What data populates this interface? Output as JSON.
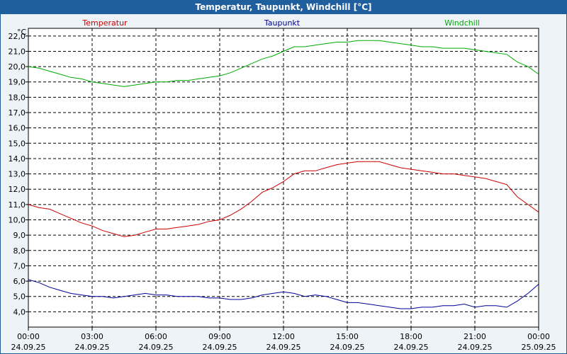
{
  "window": {
    "title": "Temperatur, Taupunkt, Windchill [°C]"
  },
  "chart_data": {
    "type": "line",
    "unit": "°C",
    "ylim": [
      3.0,
      22.5
    ],
    "yticks": [
      4.0,
      5.0,
      6.0,
      7.0,
      8.0,
      9.0,
      10.0,
      11.0,
      12.0,
      13.0,
      14.0,
      15.0,
      16.0,
      17.0,
      18.0,
      19.0,
      20.0,
      21.0,
      22.0
    ],
    "ytick_labels": [
      "4,0",
      "5,0",
      "6,0",
      "7,0",
      "8,0",
      "9,0",
      "10,0",
      "11,0",
      "12,0",
      "13,0",
      "14,0",
      "15,0",
      "16,0",
      "17,0",
      "18,0",
      "19,0",
      "20,0",
      "21,0",
      "22,0"
    ],
    "xlim_hours": [
      0,
      24
    ],
    "xticks": [
      {
        "h": 0,
        "time": "00:00",
        "date": "24.09.25"
      },
      {
        "h": 3,
        "time": "03:00",
        "date": "24.09.25"
      },
      {
        "h": 6,
        "time": "06:00",
        "date": "24.09.25"
      },
      {
        "h": 9,
        "time": "09:00",
        "date": "24.09.25"
      },
      {
        "h": 12,
        "time": "12:00",
        "date": "24.09.25"
      },
      {
        "h": 15,
        "time": "15:00",
        "date": "24.09.25"
      },
      {
        "h": 18,
        "time": "18:00",
        "date": "24.09.25"
      },
      {
        "h": 21,
        "time": "21:00",
        "date": "24.09.25"
      },
      {
        "h": 24,
        "time": "00:00",
        "date": "25.09.25"
      }
    ],
    "grid": true,
    "series": [
      {
        "name": "Temperatur",
        "color": "#cc0000",
        "x": [
          0,
          0.5,
          1,
          1.5,
          2,
          2.5,
          3,
          3.5,
          4,
          4.5,
          5,
          5.5,
          6,
          6.5,
          7,
          7.5,
          8,
          8.5,
          9,
          9.5,
          10,
          10.5,
          11,
          11.5,
          12,
          12.5,
          13,
          13.5,
          14,
          14.5,
          15,
          15.5,
          16,
          16.5,
          17,
          17.5,
          18,
          18.5,
          19,
          19.5,
          20,
          20.5,
          21,
          21.5,
          22,
          22.5,
          23,
          23.5,
          24
        ],
        "values": [
          11.0,
          10.8,
          10.7,
          10.4,
          10.1,
          9.8,
          9.6,
          9.3,
          9.1,
          8.9,
          9.0,
          9.2,
          9.4,
          9.4,
          9.5,
          9.6,
          9.7,
          9.9,
          10.0,
          10.3,
          10.7,
          11.2,
          11.8,
          12.1,
          12.5,
          13.0,
          13.2,
          13.2,
          13.4,
          13.6,
          13.7,
          13.8,
          13.8,
          13.8,
          13.6,
          13.4,
          13.3,
          13.2,
          13.1,
          13.0,
          13.0,
          12.9,
          12.8,
          12.7,
          12.5,
          12.3,
          11.5,
          11.0,
          10.5
        ]
      },
      {
        "name": "Taupunkt",
        "color": "#000099",
        "x": [
          0,
          0.5,
          1,
          1.5,
          2,
          2.5,
          3,
          3.5,
          4,
          4.5,
          5,
          5.5,
          6,
          6.5,
          7,
          7.5,
          8,
          8.5,
          9,
          9.5,
          10,
          10.5,
          11,
          11.5,
          12,
          12.5,
          13,
          13.5,
          14,
          14.5,
          15,
          15.5,
          16,
          16.5,
          17,
          17.5,
          18,
          18.5,
          19,
          19.5,
          20,
          20.5,
          21,
          21.5,
          22,
          22.5,
          23,
          23.5,
          24
        ],
        "values": [
          6.1,
          5.9,
          5.6,
          5.4,
          5.2,
          5.1,
          5.0,
          5.0,
          4.9,
          5.0,
          5.1,
          5.2,
          5.1,
          5.1,
          5.0,
          5.0,
          5.0,
          4.9,
          4.9,
          4.8,
          4.8,
          4.9,
          5.1,
          5.2,
          5.3,
          5.2,
          5.0,
          5.1,
          5.0,
          4.8,
          4.6,
          4.6,
          4.5,
          4.4,
          4.3,
          4.2,
          4.2,
          4.3,
          4.3,
          4.4,
          4.4,
          4.5,
          4.3,
          4.4,
          4.4,
          4.3,
          4.7,
          5.2,
          5.8
        ]
      },
      {
        "name": "Windchill",
        "color": "#00aa00",
        "x": [
          0,
          0.5,
          1,
          1.5,
          2,
          2.5,
          3,
          3.5,
          4,
          4.5,
          5,
          5.5,
          6,
          6.5,
          7,
          7.5,
          8,
          8.5,
          9,
          9.5,
          10,
          10.5,
          11,
          11.5,
          12,
          12.5,
          13,
          13.5,
          14,
          14.5,
          15,
          15.5,
          16,
          16.5,
          17,
          17.5,
          18,
          18.5,
          19,
          19.5,
          20,
          20.5,
          21,
          21.5,
          22,
          22.5,
          23,
          23.5,
          24
        ],
        "values": [
          20.0,
          19.9,
          19.7,
          19.5,
          19.3,
          19.2,
          19.0,
          18.9,
          18.8,
          18.7,
          18.8,
          18.9,
          19.0,
          19.0,
          19.1,
          19.1,
          19.2,
          19.3,
          19.4,
          19.6,
          19.9,
          20.2,
          20.5,
          20.7,
          21.0,
          21.3,
          21.3,
          21.4,
          21.5,
          21.6,
          21.6,
          21.7,
          21.7,
          21.7,
          21.6,
          21.5,
          21.4,
          21.3,
          21.3,
          21.2,
          21.2,
          21.2,
          21.1,
          21.0,
          20.9,
          20.8,
          20.3,
          20.0,
          19.5
        ]
      }
    ]
  }
}
